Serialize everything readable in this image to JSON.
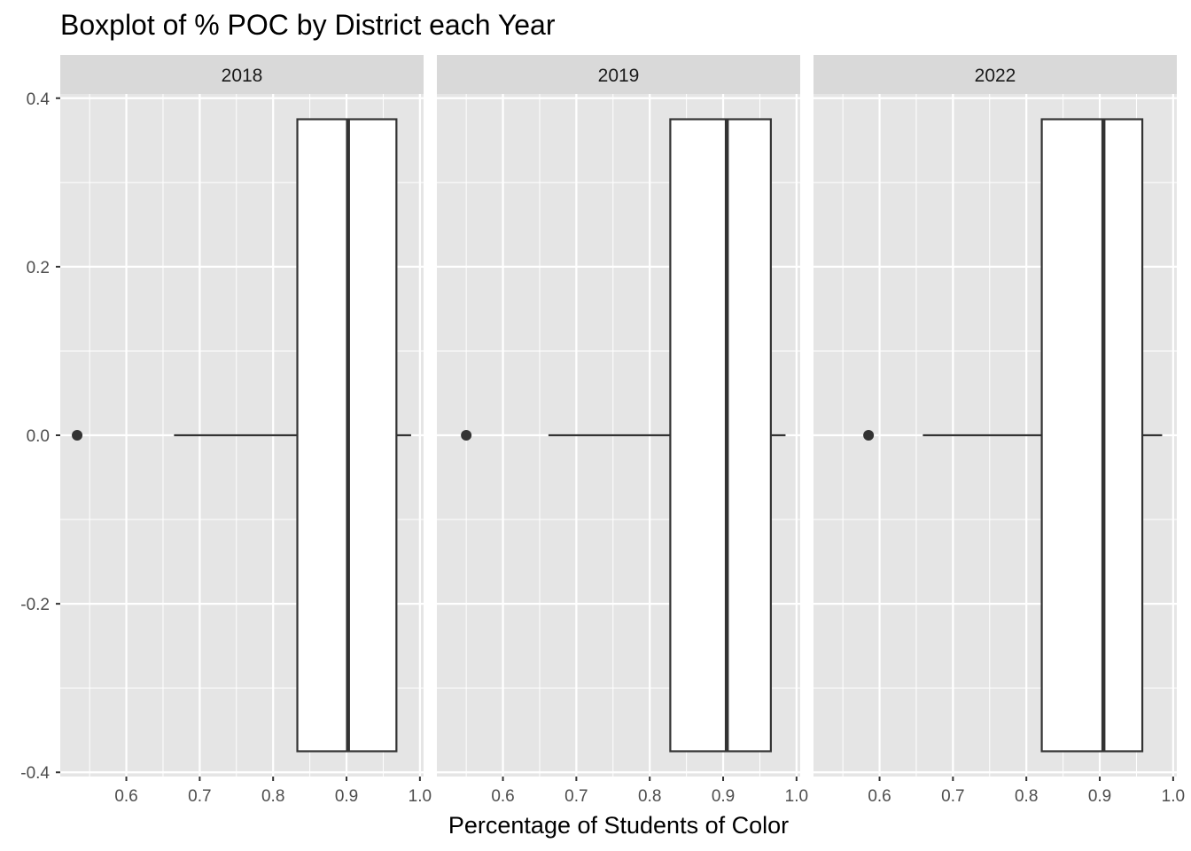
{
  "chart_data": {
    "type": "boxplot",
    "title": "Boxplot of % POC by District each Year",
    "xlabel": "Percentage of Students of Color",
    "ylabel": "",
    "xlim": [
      0.51,
      1.005
    ],
    "ylim": [
      -0.405,
      0.405
    ],
    "x_ticks": [
      0.6,
      0.7,
      0.8,
      0.9,
      1.0
    ],
    "x_tick_labels": [
      "0.6",
      "0.7",
      "0.8",
      "0.9",
      "1.0"
    ],
    "y_ticks": [
      0.4,
      0.2,
      0.0,
      -0.2,
      -0.4
    ],
    "y_tick_labels": [
      "0.4",
      "0.2",
      "0.0",
      "-0.2",
      "-0.4"
    ],
    "grid": true,
    "box_vertical_extent": [
      -0.375,
      0.375
    ],
    "colors": {
      "panel_background": "#e5e5e5",
      "strip_background": "#d9d9d9",
      "grid": "#ffffff",
      "box_fill": "#ffffff",
      "box_stroke": "#333333"
    },
    "facets": [
      {
        "label": "2018",
        "whisker_low": 0.665,
        "q1": 0.833,
        "median": 0.902,
        "q3": 0.968,
        "whisker_high": 0.988,
        "outliers": [
          0.533
        ]
      },
      {
        "label": "2019",
        "whisker_low": 0.662,
        "q1": 0.828,
        "median": 0.905,
        "q3": 0.965,
        "whisker_high": 0.985,
        "outliers": [
          0.55
        ]
      },
      {
        "label": "2022",
        "whisker_low": 0.659,
        "q1": 0.821,
        "median": 0.905,
        "q3": 0.958,
        "whisker_high": 0.985,
        "outliers": [
          0.585
        ]
      }
    ]
  }
}
